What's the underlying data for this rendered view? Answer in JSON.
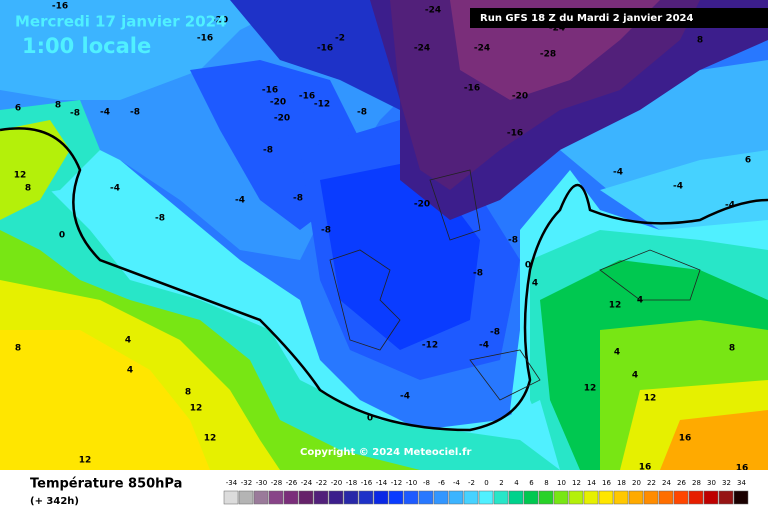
{
  "header": {
    "date": "Mercredi 17 janvier 2024",
    "time": "1:00 locale",
    "run": "Run GFS 18 Z du Mardi 2 janvier 2024"
  },
  "map": {
    "copyright": "Copyright © 2024 Meteociel.fr",
    "labels": [
      -16,
      -20,
      -16,
      -16,
      -2,
      -24,
      -24,
      -24,
      -28,
      -24,
      -16,
      -20,
      -16,
      -16,
      -20,
      -16,
      -12,
      -20,
      -8,
      -8,
      -4,
      -8,
      8,
      6,
      12,
      8,
      -4,
      -8,
      -4,
      -8,
      -8,
      -8,
      -20,
      -8,
      -8,
      0,
      -4,
      -4,
      -4,
      6,
      8,
      4,
      0,
      12,
      4,
      8,
      12,
      16,
      16,
      16,
      12,
      12,
      8,
      4,
      4,
      8,
      12,
      -12,
      -4,
      -8,
      0,
      -4,
      4,
      12,
      4
    ]
  },
  "footer": {
    "parameter": "Température 850hPa",
    "lead": "(+ 342h)"
  },
  "legend": {
    "values": [
      -34,
      -32,
      -30,
      -28,
      -26,
      -24,
      -22,
      -20,
      -18,
      -16,
      -14,
      -12,
      -10,
      -8,
      -6,
      -4,
      -2,
      0,
      2,
      4,
      6,
      8,
      10,
      12,
      14,
      16,
      18,
      20,
      22,
      24,
      26,
      28,
      30,
      32,
      34
    ],
    "colors": [
      "#dcdcdc",
      "#b4b4b4",
      "#9a7a9a",
      "#884488",
      "#7a2e7a",
      "#66226a",
      "#52207a",
      "#3c1e8c",
      "#2828a8",
      "#1e32c8",
      "#0a28e6",
      "#0a3cff",
      "#1e5aff",
      "#2878ff",
      "#3296ff",
      "#3cb4ff",
      "#46d2ff",
      "#50f0ff",
      "#28e6c8",
      "#00d28c",
      "#00c850",
      "#28d228",
      "#78e614",
      "#b4f00a",
      "#e6f000",
      "#ffe600",
      "#ffc800",
      "#ffaa00",
      "#ff8c00",
      "#ff6e00",
      "#ff4600",
      "#e61e00",
      "#be0000",
      "#961414",
      "#1a0000"
    ]
  }
}
